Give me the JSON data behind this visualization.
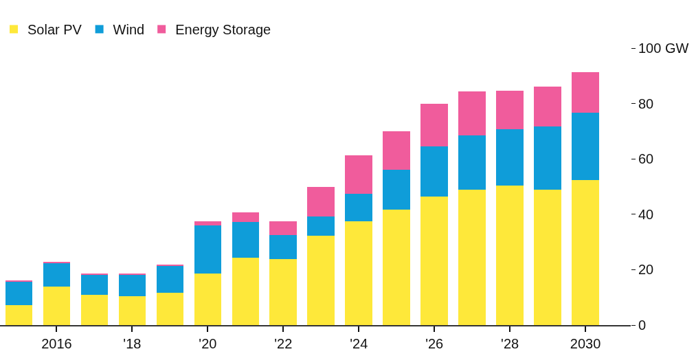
{
  "chart_data": {
    "type": "bar",
    "stacked": true,
    "x": [
      2015,
      2016,
      2017,
      2018,
      2019,
      2020,
      2021,
      2022,
      2023,
      2024,
      2025,
      2026,
      2027,
      2028,
      2029,
      2030
    ],
    "series": [
      {
        "name": "Solar PV",
        "color": "#fee83a",
        "values": [
          7.2,
          14.0,
          10.8,
          10.3,
          11.6,
          18.7,
          24.2,
          23.7,
          32.3,
          37.5,
          41.7,
          46.4,
          48.8,
          50.3,
          48.8,
          52.4
        ]
      },
      {
        "name": "Wind",
        "color": "#0f9dd9",
        "values": [
          8.6,
          8.4,
          7.2,
          7.7,
          9.8,
          17.3,
          13.1,
          8.8,
          7.0,
          10.0,
          14.4,
          18.0,
          19.8,
          20.4,
          23.0,
          24.3
        ]
      },
      {
        "name": "Energy Storage",
        "color": "#f05c9c",
        "values": [
          0.4,
          0.2,
          0.5,
          0.5,
          0.4,
          1.5,
          3.4,
          5.0,
          10.5,
          13.8,
          13.8,
          15.5,
          15.7,
          13.9,
          14.3,
          14.7
        ]
      }
    ],
    "xlim": [
      2014.5,
      2031.2
    ],
    "xticks": [
      2016,
      {
        "value": 2018,
        "label": "'18"
      },
      {
        "value": 2020,
        "label": "'20"
      },
      {
        "value": 2022,
        "label": "'22"
      },
      {
        "value": 2024,
        "label": "'24"
      },
      {
        "value": 2026,
        "label": "'26"
      },
      {
        "value": 2028,
        "label": "'28"
      },
      2030
    ],
    "ylim": [
      0,
      100
    ],
    "yticks": [
      0,
      20,
      40,
      60,
      80,
      {
        "value": 100,
        "label": "100 GW"
      }
    ],
    "grid": false,
    "legend": "top left"
  }
}
